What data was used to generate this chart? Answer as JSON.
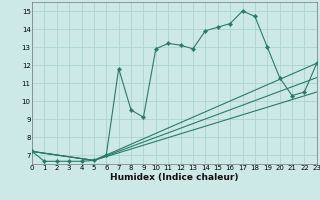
{
  "title": "",
  "xlabel": "Humidex (Indice chaleur)",
  "xlim": [
    0,
    23
  ],
  "ylim": [
    6.5,
    15.5
  ],
  "yticks": [
    7,
    8,
    9,
    10,
    11,
    12,
    13,
    14,
    15
  ],
  "xticks": [
    0,
    1,
    2,
    3,
    4,
    5,
    6,
    7,
    8,
    9,
    10,
    11,
    12,
    13,
    14,
    15,
    16,
    17,
    18,
    19,
    20,
    21,
    22,
    23
  ],
  "bg_color": "#cce9e7",
  "grid_color": "#aad4d1",
  "line_color": "#2a7a6a",
  "main_line": {
    "x": [
      0,
      1,
      2,
      3,
      4,
      5,
      6,
      7,
      8,
      9,
      10,
      11,
      12,
      13,
      14,
      15,
      16,
      17,
      18,
      19,
      20,
      21,
      22,
      23
    ],
    "y": [
      7.2,
      6.65,
      6.65,
      6.65,
      6.65,
      6.7,
      7.0,
      11.8,
      9.5,
      9.1,
      12.9,
      13.2,
      13.1,
      12.9,
      13.9,
      14.1,
      14.3,
      15.0,
      14.7,
      13.0,
      11.3,
      10.3,
      10.5,
      12.1
    ]
  },
  "ref_lines": [
    {
      "x": [
        0,
        5,
        23
      ],
      "y": [
        7.2,
        6.7,
        12.1
      ]
    },
    {
      "x": [
        0,
        5,
        23
      ],
      "y": [
        7.2,
        6.7,
        10.5
      ]
    },
    {
      "x": [
        0,
        5,
        23
      ],
      "y": [
        7.2,
        6.7,
        11.3
      ]
    }
  ]
}
